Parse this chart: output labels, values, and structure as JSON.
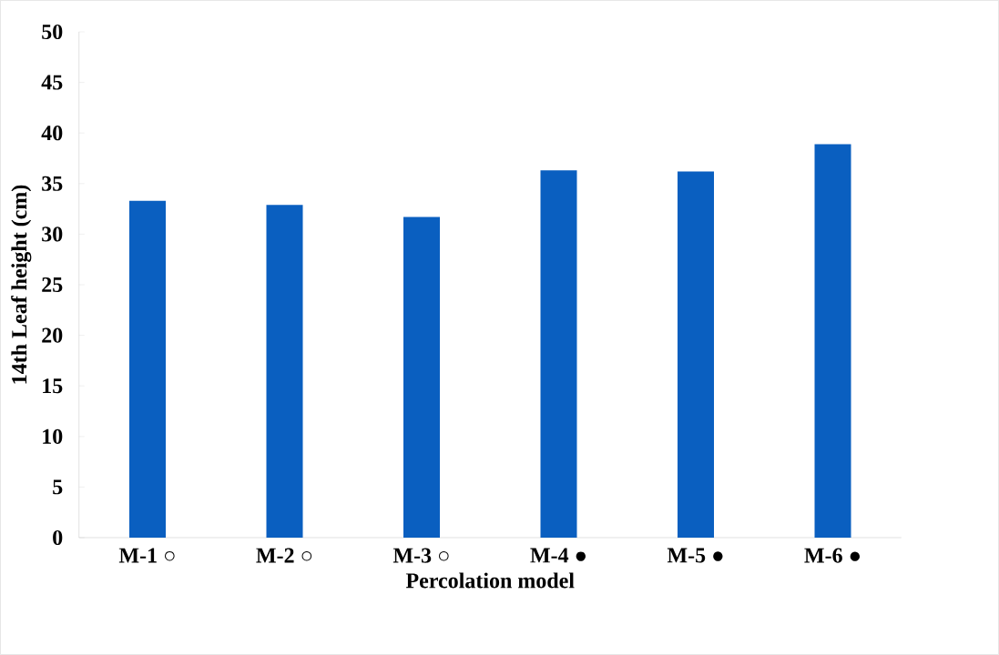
{
  "chart_data": {
    "type": "bar",
    "xlabel": "Percolation model",
    "ylabel": "14th Leaf height (cm)",
    "categories": [
      "M-1 ○",
      "M-2 ○",
      "M-3 ○",
      "M-4 ●",
      "M-5 ●",
      "M-6 ●"
    ],
    "values": [
      33.3,
      32.9,
      31.7,
      36.3,
      36.2,
      38.9
    ],
    "color": "#0a5fc0",
    "ylim": [
      0,
      50
    ],
    "yticks": [
      0,
      5,
      10,
      15,
      20,
      25,
      30,
      35,
      40,
      45,
      50
    ]
  }
}
